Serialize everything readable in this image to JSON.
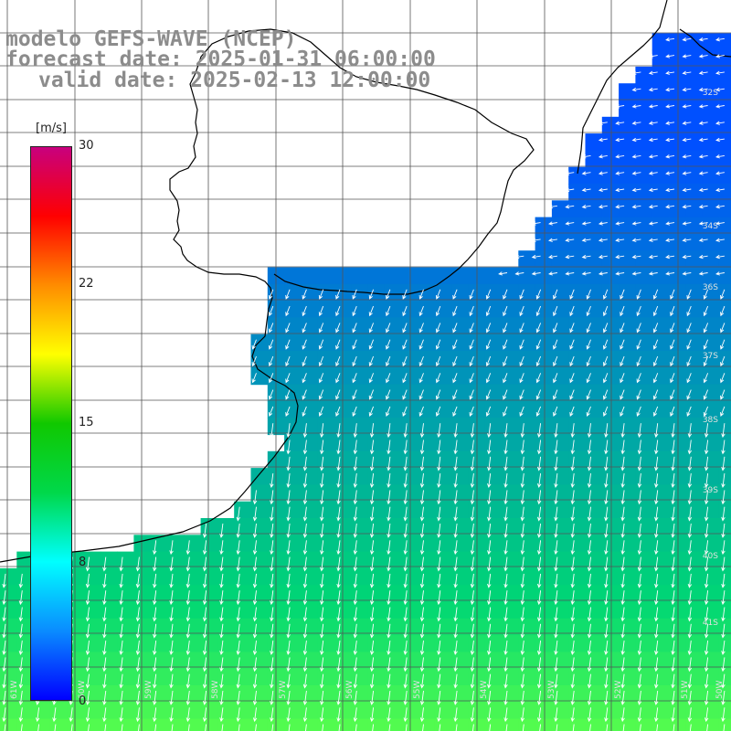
{
  "header": {
    "model": "modelo GEFS-WAVE (NCEP)",
    "forecast": "forecast date: 2025-01-31 06:00:00",
    "valid": "valid date: 2025-02-13 12:00:00"
  },
  "legend": {
    "unit": "[m/s]",
    "ticks": [
      "30",
      "22",
      "15",
      "8",
      "0"
    ],
    "colors": [
      "#0000ff",
      "#0a8cff",
      "#00ffff",
      "#00d84a",
      "#10c800",
      "#ffff00",
      "#ff8c00",
      "#ff0000",
      "#c8007e"
    ]
  },
  "map": {
    "background": "#ffffff",
    "grid_color": "#555555",
    "coast_color": "#000000",
    "lat_labels": [
      "32S",
      "34S",
      "36S",
      "37S",
      "38S",
      "39S",
      "40S",
      "41S"
    ],
    "lon_labels": [
      "61W",
      "60W",
      "59W",
      "58W",
      "57W",
      "56W",
      "55W",
      "54W",
      "53W",
      "52W",
      "51W",
      "50W"
    ]
  }
}
